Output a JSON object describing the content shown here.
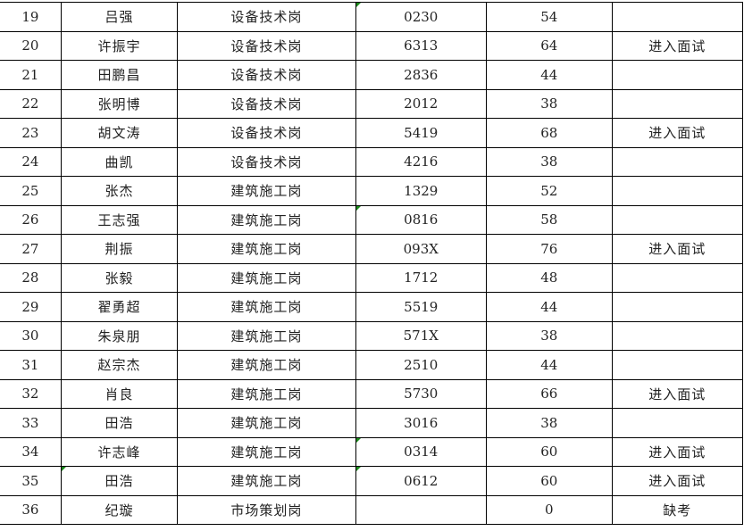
{
  "rows": [
    {
      "no": "19",
      "name": "吕强",
      "post": "设备技术岗",
      "id": "0230",
      "score": "54",
      "remark": "",
      "id_flag": true,
      "name_flag": false
    },
    {
      "no": "20",
      "name": "许振宇",
      "post": "设备技术岗",
      "id": "6313",
      "score": "64",
      "remark": "进入面试",
      "id_flag": false,
      "name_flag": false
    },
    {
      "no": "21",
      "name": "田鹏昌",
      "post": "设备技术岗",
      "id": "2836",
      "score": "44",
      "remark": "",
      "id_flag": false,
      "name_flag": false
    },
    {
      "no": "22",
      "name": "张明博",
      "post": "设备技术岗",
      "id": "2012",
      "score": "38",
      "remark": "",
      "id_flag": false,
      "name_flag": false
    },
    {
      "no": "23",
      "name": "胡文涛",
      "post": "设备技术岗",
      "id": "5419",
      "score": "68",
      "remark": "进入面试",
      "id_flag": false,
      "name_flag": false
    },
    {
      "no": "24",
      "name": "曲凯",
      "post": "设备技术岗",
      "id": "4216",
      "score": "38",
      "remark": "",
      "id_flag": false,
      "name_flag": false
    },
    {
      "no": "25",
      "name": "张杰",
      "post": "建筑施工岗",
      "id": "1329",
      "score": "52",
      "remark": "",
      "id_flag": false,
      "name_flag": false
    },
    {
      "no": "26",
      "name": "王志强",
      "post": "建筑施工岗",
      "id": "0816",
      "score": "58",
      "remark": "",
      "id_flag": true,
      "name_flag": false
    },
    {
      "no": "27",
      "name": "荆振",
      "post": "建筑施工岗",
      "id": "093X",
      "score": "76",
      "remark": "进入面试",
      "id_flag": false,
      "name_flag": false
    },
    {
      "no": "28",
      "name": "张毅",
      "post": "建筑施工岗",
      "id": "1712",
      "score": "48",
      "remark": "",
      "id_flag": false,
      "name_flag": false
    },
    {
      "no": "29",
      "name": "翟勇超",
      "post": "建筑施工岗",
      "id": "5519",
      "score": "44",
      "remark": "",
      "id_flag": false,
      "name_flag": false
    },
    {
      "no": "30",
      "name": "朱泉朋",
      "post": "建筑施工岗",
      "id": "571X",
      "score": "38",
      "remark": "",
      "id_flag": false,
      "name_flag": false
    },
    {
      "no": "31",
      "name": "赵宗杰",
      "post": "建筑施工岗",
      "id": "2510",
      "score": "44",
      "remark": "",
      "id_flag": false,
      "name_flag": false
    },
    {
      "no": "32",
      "name": "肖良",
      "post": "建筑施工岗",
      "id": "5730",
      "score": "66",
      "remark": "进入面试",
      "id_flag": false,
      "name_flag": false
    },
    {
      "no": "33",
      "name": "田浩",
      "post": "建筑施工岗",
      "id": "3016",
      "score": "38",
      "remark": "",
      "id_flag": false,
      "name_flag": false
    },
    {
      "no": "34",
      "name": "许志峰",
      "post": "建筑施工岗",
      "id": "0314",
      "score": "60",
      "remark": "进入面试",
      "id_flag": true,
      "name_flag": false
    },
    {
      "no": "35",
      "name": "田浩",
      "post": "建筑施工岗",
      "id": "0612",
      "score": "60",
      "remark": "进入面试",
      "id_flag": true,
      "name_flag": true
    },
    {
      "no": "36",
      "name": "纪璇",
      "post": "市场策划岗",
      "id": "",
      "score": "0",
      "remark": "缺考",
      "id_flag": false,
      "name_flag": false
    }
  ]
}
